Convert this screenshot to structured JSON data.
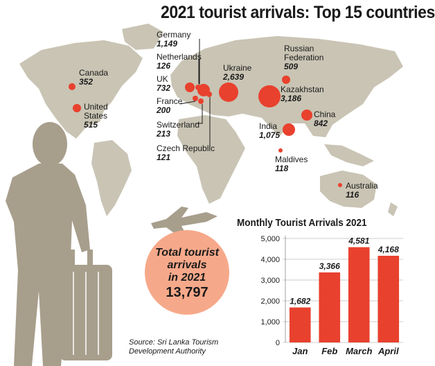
{
  "title": "2021 tourist arrivals: Top 15 countries",
  "countries": [
    {
      "name": "Canada",
      "value": "352"
    },
    {
      "name": "United States",
      "name_l1": "United",
      "name_l2": "States",
      "value": "515"
    },
    {
      "name": "Germany",
      "value": "1,149"
    },
    {
      "name": "Netherlands",
      "value": "126"
    },
    {
      "name": "UK",
      "value": "732"
    },
    {
      "name": "France",
      "value": "200"
    },
    {
      "name": "Switzerland",
      "value": "213"
    },
    {
      "name": "Czech Republic",
      "value": "121"
    },
    {
      "name": "Ukraine",
      "value": "2,639"
    },
    {
      "name": "Russian Federation",
      "name_l1": "Russian",
      "name_l2": "Federation",
      "value": "509"
    },
    {
      "name": "Kazakhstan",
      "value": "3,186"
    },
    {
      "name": "China",
      "value": "842"
    },
    {
      "name": "India",
      "value": "1,075"
    },
    {
      "name": "Maldives",
      "value": "118"
    },
    {
      "name": "Australia",
      "value": "116"
    }
  ],
  "total": {
    "l1": "Total tourist",
    "l2": "arrivals",
    "l3": "in 2021",
    "value": "13,797"
  },
  "source": {
    "l1": "Source: Sri Lanka Tourism",
    "l2": "Development Authority"
  },
  "colors": {
    "accent": "#e8412e",
    "map": "#c9c4b4",
    "silhouette": "#a79e8c",
    "total_circle": "#f6a98a",
    "grid": "#bbbbbb"
  },
  "chart_data": {
    "type": "bar",
    "title": "Monthly Tourist Arrivals 2021",
    "categories": [
      "Jan",
      "Feb",
      "March",
      "April"
    ],
    "values": [
      1682,
      3366,
      4581,
      4168
    ],
    "value_labels": [
      "1,682",
      "3,366",
      "4,581",
      "4,168"
    ],
    "yticks": [
      "0",
      "1,000",
      "2,000",
      "3,000",
      "4,000",
      "5,000"
    ],
    "ylim": [
      0,
      5000
    ],
    "grid": true,
    "bar_color": "#e8412e"
  }
}
